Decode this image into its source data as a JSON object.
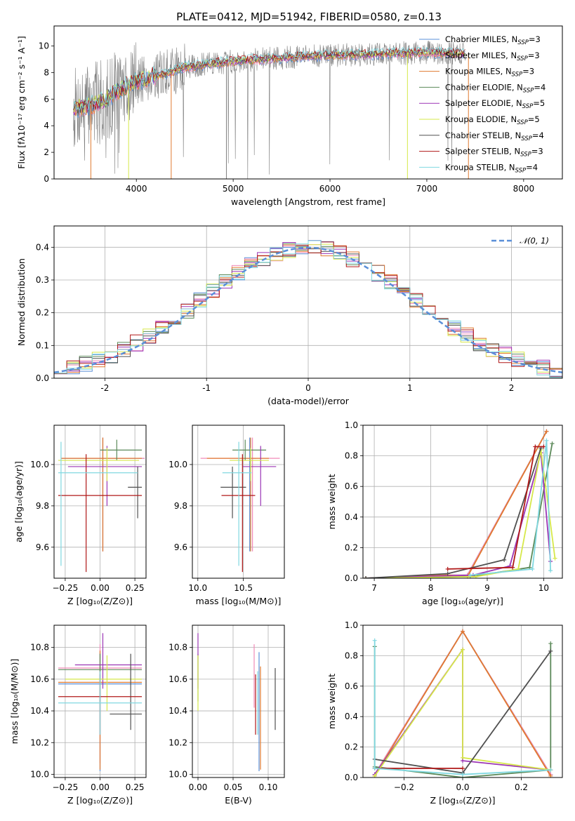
{
  "figure": {
    "title": "PLATE=0412, MJD=51942, FIBERID=0580, z=0.13"
  },
  "colors": {
    "Chabrier MILES": "#5a8fd8",
    "Salpeter MILES": "#f08ab8",
    "Kroupa MILES": "#e07a30",
    "Chabrier ELODIE": "#5c8a5a",
    "Salpeter ELODIE": "#9b35b5",
    "Kroupa ELODIE": "#d6e84a",
    "Chabrier STELIB": "#505050",
    "Salpeter STELIB": "#b01818",
    "Kroupa STELIB": "#80d8e0"
  },
  "chart_data": [
    {
      "id": "spectrum",
      "type": "line",
      "xlabel": "wavelength [Angstrom, rest frame]",
      "ylabel": "Flux [fλ10⁻¹⁷ erg cm⁻² s⁻¹ A⁻¹]",
      "xlim": [
        3150,
        8400
      ],
      "ylim": [
        0,
        11.5
      ],
      "xticks": [
        4000,
        5000,
        6000,
        7000,
        8000
      ],
      "yticks": [
        0,
        2,
        4,
        6,
        8,
        10
      ],
      "legend": {
        "placement": "top-right",
        "entries": [
          {
            "series": "Chabrier MILES",
            "pre": "Chabrier MILES, N",
            "n": "3"
          },
          {
            "series": "Salpeter MILES",
            "pre": "Salpeter MILES, N",
            "n": "3"
          },
          {
            "series": "Kroupa MILES",
            "pre": "Kroupa MILES, N",
            "n": "3"
          },
          {
            "series": "Chabrier ELODIE",
            "pre": "Chabrier ELODIE, N",
            "n": "4"
          },
          {
            "series": "Salpeter ELODIE",
            "pre": "Salpeter ELODIE, N",
            "n": "5"
          },
          {
            "series": "Kroupa ELODIE",
            "pre": "Kroupa ELODIE, N",
            "n": "5"
          },
          {
            "series": "Chabrier STELIB",
            "pre": "Chabrier STELIB, N",
            "n": "4"
          },
          {
            "series": "Salpeter STELIB",
            "pre": "Salpeter STELIB, N",
            "n": "3"
          },
          {
            "series": "Kroupa STELIB",
            "pre": "Kroupa STELIB, N",
            "n": "4"
          }
        ],
        "subscript": "SSP"
      },
      "continuum": [
        [
          3350,
          5.3
        ],
        [
          3500,
          5.5
        ],
        [
          3650,
          5.8
        ],
        [
          3800,
          6.6
        ],
        [
          3950,
          7.2
        ],
        [
          4100,
          7.6
        ],
        [
          4300,
          7.9
        ],
        [
          4500,
          8.4
        ],
        [
          4800,
          8.7
        ],
        [
          5100,
          8.9
        ],
        [
          5500,
          9.1
        ],
        [
          6000,
          9.3
        ],
        [
          6500,
          9.4
        ],
        [
          7000,
          9.5
        ],
        [
          7500,
          9.4
        ]
      ],
      "data_range": [
        3350,
        7400
      ],
      "model_range": [
        3350,
        7400
      ]
    },
    {
      "id": "residuals",
      "type": "bar",
      "xlabel": "(data-model)/error",
      "ylabel": "Normed distribution",
      "xlim": [
        -2.5,
        2.5
      ],
      "ylim": [
        0,
        0.465
      ],
      "xticks": [
        -2,
        -1,
        0,
        1,
        2
      ],
      "yticks": [
        0.0,
        0.1,
        0.2,
        0.3,
        0.4
      ],
      "bin_width": 0.125,
      "reference": {
        "label": "𝒩(0, 1)",
        "mean": 0,
        "sigma": 1,
        "style": "dashed",
        "color": "#5a8fd8"
      }
    },
    {
      "id": "age-vs-Z",
      "type": "scatter",
      "xlabel": "Z [log₁₀(Z/Z⊙)]",
      "ylabel": "age  [log₁₀(age/yr)]",
      "xlim": [
        -0.33,
        0.33
      ],
      "ylim": [
        9.45,
        10.19
      ],
      "xticks": [
        -0.25,
        0.0,
        0.25
      ],
      "xticklabels": [
        "−0.25",
        "0.00",
        "0.25"
      ],
      "yticks": [
        9.6,
        9.8,
        10.0
      ],
      "points": [
        {
          "series": "Chabrier MILES",
          "x": 0.02,
          "y": 10.03,
          "ex": [
            0.3,
            0.3
          ],
          "ey": [
            0.45,
            0.1
          ]
        },
        {
          "series": "Salpeter MILES",
          "x": 0.02,
          "y": 10.03,
          "ex": [
            0.3,
            0.3
          ],
          "ey": [
            0.45,
            0.1
          ]
        },
        {
          "series": "Kroupa MILES",
          "x": 0.02,
          "y": 10.03,
          "ex": [
            0.3,
            0.28
          ],
          "ey": [
            0.45,
            0.1
          ]
        },
        {
          "series": "Chabrier ELODIE",
          "x": 0.12,
          "y": 10.07,
          "ex": [
            0.12,
            0.18
          ],
          "ey": [
            0.05,
            0.05
          ]
        },
        {
          "series": "Salpeter ELODIE",
          "x": 0.05,
          "y": 9.99,
          "ex": [
            0.28,
            0.25
          ],
          "ey": [
            0.19,
            0.1
          ]
        },
        {
          "series": "Kroupa ELODIE",
          "x": 0.05,
          "y": 10.02,
          "ex": [
            0.35,
            0.23
          ],
          "ey": [
            0.1,
            0.06
          ]
        },
        {
          "series": "Chabrier STELIB",
          "x": 0.27,
          "y": 9.89,
          "ex": [
            0.07,
            0.03
          ],
          "ey": [
            0.15,
            0.1
          ]
        },
        {
          "series": "Salpeter STELIB",
          "x": -0.1,
          "y": 9.85,
          "ex": [
            0.2,
            0.4
          ],
          "ey": [
            0.37,
            0.2
          ]
        },
        {
          "series": "Kroupa STELIB",
          "x": -0.28,
          "y": 9.96,
          "ex": [
            0.02,
            0.55
          ],
          "ey": [
            0.45,
            0.15
          ]
        }
      ]
    },
    {
      "id": "age-vs-mass",
      "type": "scatter",
      "xlabel": "mass [log₁₀(M/M⊙)]",
      "ylabel": "",
      "xlim": [
        9.94,
        10.95
      ],
      "ylim": [
        9.45,
        10.19
      ],
      "xticks": [
        10.0,
        10.5
      ],
      "xticklabels": [
        "10.0",
        "10.5"
      ],
      "yticks": [
        9.6,
        9.8,
        10.0
      ],
      "points": [
        {
          "series": "Chabrier MILES",
          "x": 10.57,
          "y": 10.03,
          "ex": [
            0.07,
            0.07
          ],
          "ey": [
            0.45,
            0.1
          ]
        },
        {
          "series": "Salpeter MILES",
          "x": 10.6,
          "y": 10.03,
          "ex": [
            0.57,
            0.3
          ],
          "ey": [
            0.45,
            0.1
          ]
        },
        {
          "series": "Kroupa MILES",
          "x": 10.58,
          "y": 10.03,
          "ex": [
            0.48,
            0.2
          ],
          "ey": [
            0.45,
            0.1
          ]
        },
        {
          "series": "Chabrier ELODIE",
          "x": 10.52,
          "y": 10.07,
          "ex": [
            0.14,
            0.23
          ],
          "ey": [
            0.05,
            0.05
          ]
        },
        {
          "series": "Salpeter ELODIE",
          "x": 10.69,
          "y": 9.99,
          "ex": [
            0.2,
            0.17
          ],
          "ey": [
            0.19,
            0.1
          ]
        },
        {
          "series": "Kroupa ELODIE",
          "x": 10.58,
          "y": 10.02,
          "ex": [
            0.23,
            0.2
          ],
          "ey": [
            0.1,
            0.06
          ]
        },
        {
          "series": "Chabrier STELIB",
          "x": 10.38,
          "y": 9.89,
          "ex": [
            0.13,
            0.15
          ],
          "ey": [
            0.15,
            0.1
          ]
        },
        {
          "series": "Salpeter STELIB",
          "x": 10.49,
          "y": 9.85,
          "ex": [
            0.23,
            0.14
          ],
          "ey": [
            0.37,
            0.2
          ]
        },
        {
          "series": "Kroupa STELIB",
          "x": 10.45,
          "y": 9.96,
          "ex": [
            0.18,
            0.14
          ],
          "ey": [
            0.45,
            0.15
          ]
        }
      ]
    },
    {
      "id": "weight-vs-age",
      "type": "line",
      "xlabel": "age  [log₁₀(age/yr)]",
      "ylabel": "mass weight",
      "xlim": [
        6.8,
        10.33
      ],
      "ylim": [
        0,
        1
      ],
      "xticks": [
        7,
        8,
        9,
        10
      ],
      "yticks": [
        0.0,
        0.2,
        0.4,
        0.6,
        0.8,
        1.0
      ],
      "series": [
        {
          "name": "Chabrier MILES",
          "x": [
            6.85,
            8.3,
            8.65,
            10.05
          ],
          "y": [
            0.0,
            0.02,
            0.02,
            0.96
          ]
        },
        {
          "name": "Salpeter MILES",
          "x": [
            6.85,
            8.3,
            8.65,
            10.05
          ],
          "y": [
            0.0,
            0.02,
            0.02,
            0.96
          ]
        },
        {
          "name": "Kroupa MILES",
          "x": [
            6.85,
            8.3,
            8.65,
            10.05
          ],
          "y": [
            0.0,
            0.02,
            0.01,
            0.96
          ]
        },
        {
          "name": "Chabrier ELODIE",
          "x": [
            6.85,
            8.7,
            9.75,
            10.15
          ],
          "y": [
            0.0,
            0.01,
            0.07,
            0.88
          ]
        },
        {
          "name": "Salpeter ELODIE",
          "x": [
            6.85,
            8.75,
            9.4,
            9.95,
            10.12
          ],
          "y": [
            0.0,
            0.02,
            0.08,
            0.82,
            0.11
          ]
        },
        {
          "name": "Kroupa ELODIE",
          "x": [
            6.85,
            8.8,
            9.55,
            9.95,
            10.2
          ],
          "y": [
            0.0,
            0.01,
            0.06,
            0.84,
            0.13
          ]
        },
        {
          "name": "Chabrier STELIB",
          "x": [
            6.85,
            8.3,
            9.3,
            9.95
          ],
          "y": [
            0.0,
            0.03,
            0.12,
            0.85
          ]
        },
        {
          "name": "Salpeter STELIB",
          "x": [
            8.3,
            9.45,
            9.85,
            10.0
          ],
          "y": [
            0.06,
            0.07,
            0.86,
            0.86
          ]
        },
        {
          "name": "Kroupa STELIB",
          "x": [
            8.7,
            9.8,
            10.05,
            10.12
          ],
          "y": [
            0.02,
            0.06,
            0.9,
            0.05
          ]
        }
      ]
    },
    {
      "id": "mass-vs-Z",
      "type": "scatter",
      "xlabel": "Z [log₁₀(Z/Z⊙)]",
      "ylabel": "mass [log₁₀(M/M⊙)]",
      "xlim": [
        -0.33,
        0.33
      ],
      "ylim": [
        9.98,
        10.94
      ],
      "xticks": [
        -0.25,
        0.0,
        0.25
      ],
      "xticklabels": [
        "−0.25",
        "0.00",
        "0.25"
      ],
      "yticks": [
        10.0,
        10.2,
        10.4,
        10.6,
        10.8
      ],
      "points": [
        {
          "series": "Chabrier MILES",
          "x": 0.0,
          "y": 10.57,
          "ex": [
            0.3,
            0.3
          ],
          "ey": [
            0.55,
            0.2
          ]
        },
        {
          "series": "Salpeter MILES",
          "x": 0.0,
          "y": 10.67,
          "ex": [
            0.3,
            0.3
          ],
          "ey": [
            0.6,
            0.15
          ]
        },
        {
          "series": "Kroupa MILES",
          "x": 0.0,
          "y": 10.58,
          "ex": [
            0.3,
            0.3
          ],
          "ey": [
            0.55,
            0.2
          ]
        },
        {
          "series": "Chabrier ELODIE",
          "x": 0.0,
          "y": 10.66,
          "ex": [
            0.3,
            0.3
          ],
          "ey": [
            0.2,
            0.1
          ]
        },
        {
          "series": "Salpeter ELODIE",
          "x": 0.02,
          "y": 10.69,
          "ex": [
            0.2,
            0.28
          ],
          "ey": [
            0.15,
            0.2
          ]
        },
        {
          "series": "Kroupa ELODIE",
          "x": 0.05,
          "y": 10.6,
          "ex": [
            0.3,
            0.25
          ],
          "ey": [
            0.2,
            0.15
          ]
        },
        {
          "series": "Chabrier STELIB",
          "x": 0.22,
          "y": 10.38,
          "ex": [
            0.15,
            0.08
          ],
          "ey": [
            0.1,
            0.38
          ]
        },
        {
          "series": "Salpeter STELIB",
          "x": 0.0,
          "y": 10.49,
          "ex": [
            0.3,
            0.3
          ],
          "ey": [
            0.24,
            0.14
          ]
        },
        {
          "series": "Kroupa STELIB",
          "x": 0.0,
          "y": 10.45,
          "ex": [
            0.3,
            0.3
          ],
          "ey": [
            0.2,
            0.2
          ]
        }
      ]
    },
    {
      "id": "mass-vs-ebv",
      "type": "scatter",
      "xlabel": "E(B-V)",
      "ylabel": "",
      "xlim": [
        -0.008,
        0.123
      ],
      "ylim": [
        9.98,
        10.94
      ],
      "xticks": [
        0.0,
        0.05,
        0.1
      ],
      "xticklabels": [
        "0.00",
        "0.05",
        "0.10"
      ],
      "yticks": [
        10.0,
        10.2,
        10.4,
        10.6,
        10.8
      ],
      "points": [
        {
          "series": "Chabrier MILES",
          "x": 0.087,
          "y": 10.57,
          "ex": [
            0,
            0
          ],
          "ey": [
            0.55,
            0.2
          ]
        },
        {
          "series": "Salpeter MILES",
          "x": 0.08,
          "y": 10.67,
          "ex": [
            0,
            0
          ],
          "ey": [
            0.25,
            0.15
          ]
        },
        {
          "series": "Kroupa MILES",
          "x": 0.089,
          "y": 10.58,
          "ex": [
            0,
            0
          ],
          "ey": [
            0.55,
            0.1
          ]
        },
        {
          "series": "Chabrier ELODIE",
          "x": 0.0,
          "y": 10.66,
          "ex": [
            0,
            0
          ],
          "ey": [
            0.2,
            0.1
          ]
        },
        {
          "series": "Salpeter ELODIE",
          "x": 0.0,
          "y": 10.69,
          "ex": [
            0,
            0
          ],
          "ey": [
            0.15,
            0.2
          ]
        },
        {
          "series": "Kroupa ELODIE",
          "x": 0.0,
          "y": 10.6,
          "ex": [
            0,
            0
          ],
          "ey": [
            0.2,
            0.15
          ]
        },
        {
          "series": "Chabrier STELIB",
          "x": 0.11,
          "y": 10.38,
          "ex": [
            0,
            0
          ],
          "ey": [
            0.1,
            0.29
          ]
        },
        {
          "series": "Salpeter STELIB",
          "x": 0.082,
          "y": 10.49,
          "ex": [
            0,
            0
          ],
          "ey": [
            0.24,
            0.14
          ]
        },
        {
          "series": "Kroupa STELIB",
          "x": 0.085,
          "y": 10.45,
          "ex": [
            0,
            0
          ],
          "ey": [
            0.2,
            0.2
          ]
        }
      ]
    },
    {
      "id": "weight-vs-Z",
      "type": "line",
      "xlabel": "Z [log₁₀(Z/Z⊙)]",
      "ylabel": "mass weight",
      "xlim": [
        -0.34,
        0.34
      ],
      "ylim": [
        0,
        1
      ],
      "xticks": [
        -0.2,
        0.0,
        0.2
      ],
      "xticklabels": [
        "−0.2",
        "0.0",
        "0.2"
      ],
      "yticks": [
        0.0,
        0.2,
        0.4,
        0.6,
        0.8,
        1.0
      ],
      "series": [
        {
          "name": "Chabrier MILES",
          "x": [
            -0.3,
            0.0,
            0.3
          ],
          "y": [
            0.02,
            0.96,
            0.02
          ]
        },
        {
          "name": "Salpeter MILES",
          "x": [
            -0.3,
            0.0,
            0.3
          ],
          "y": [
            0.02,
            0.96,
            0.02
          ]
        },
        {
          "name": "Kroupa MILES",
          "x": [
            -0.3,
            0.0,
            0.3
          ],
          "y": [
            0.01,
            0.96,
            0.01
          ]
        },
        {
          "name": "Chabrier ELODIE",
          "x": [
            -0.3,
            -0.3,
            0.0,
            0.3,
            0.3
          ],
          "y": [
            0.86,
            0.07,
            0.0,
            0.05,
            0.88
          ]
        },
        {
          "name": "Salpeter ELODIE",
          "x": [
            -0.3,
            0.0,
            0.0,
            0.3
          ],
          "y": [
            0.02,
            0.84,
            0.11,
            0.05
          ]
        },
        {
          "name": "Kroupa ELODIE",
          "x": [
            -0.3,
            0.0,
            0.0,
            0.3
          ],
          "y": [
            0.01,
            0.84,
            0.13,
            0.05
          ]
        },
        {
          "name": "Chabrier STELIB",
          "x": [
            -0.3,
            0.0,
            0.3
          ],
          "y": [
            0.12,
            0.03,
            0.83
          ]
        },
        {
          "name": "Salpeter STELIB",
          "x": [
            -0.3,
            0.0
          ],
          "y": [
            0.06,
            0.06
          ]
        },
        {
          "name": "Kroupa STELIB",
          "x": [
            -0.3,
            -0.3,
            0.0,
            0.3
          ],
          "y": [
            0.9,
            0.06,
            0.02,
            0.05
          ]
        }
      ]
    }
  ]
}
